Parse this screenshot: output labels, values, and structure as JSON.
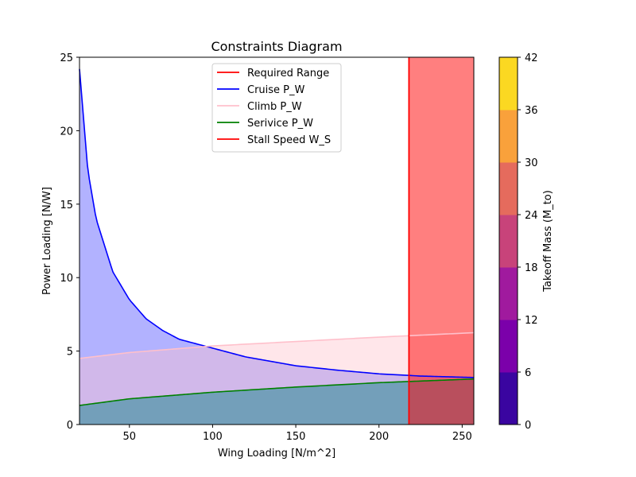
{
  "chart_data": {
    "type": "area",
    "title": "Constraints Diagram",
    "xlabel": "Wing Loading [N/m^2]",
    "ylabel": "Power Loading [N/W]",
    "xlim": [
      20,
      257
    ],
    "ylim": [
      0,
      25
    ],
    "xticks": [
      50,
      100,
      150,
      200,
      250
    ],
    "yticks": [
      0,
      5,
      10,
      15,
      20,
      25
    ],
    "legend_position": "upper center",
    "series": [
      {
        "name": "Cruise P_W",
        "color": "#0000ff",
        "fill_color": "#b3b3ff",
        "x": [
          20,
          25,
          30,
          40,
          50,
          60,
          70,
          80,
          100,
          120,
          150,
          175,
          200,
          225,
          257
        ],
        "y": [
          24.2,
          17.3,
          14.0,
          10.4,
          8.5,
          7.2,
          6.4,
          5.8,
          5.2,
          4.6,
          4.0,
          3.7,
          3.45,
          3.3,
          3.2
        ]
      },
      {
        "name": "Climb P_W",
        "color": "#ffc0cb",
        "fill_color": "#ffe6ea",
        "x": [
          20,
          50,
          100,
          150,
          200,
          257
        ],
        "y": [
          4.5,
          4.9,
          5.35,
          5.65,
          5.95,
          6.25
        ]
      },
      {
        "name": "Serivice P_W",
        "color": "#008000",
        "fill_color": "#8ca8a8",
        "x": [
          20,
          50,
          100,
          150,
          200,
          257
        ],
        "y": [
          1.3,
          1.75,
          2.2,
          2.55,
          2.85,
          3.1
        ]
      }
    ],
    "vertical_lines": [
      {
        "name": "Required Range",
        "x": 218,
        "color": "#ff0000"
      },
      {
        "name": "Stall Speed W_S",
        "x": 218,
        "color": "#ff0000",
        "fill_right": true,
        "fill_color": "#ff8080"
      }
    ],
    "legend": [
      {
        "label": "Required Range",
        "color": "#ff0000"
      },
      {
        "label": "Cruise P_W",
        "color": "#0000ff"
      },
      {
        "label": "Climb P_W",
        "color": "#ffc0cb"
      },
      {
        "label": "Serivice P_W",
        "color": "#008000"
      },
      {
        "label": "Stall Speed W_S",
        "color": "#ff0000"
      }
    ],
    "colorbar": {
      "label": "Takeoff Mass (M_to)",
      "ticks": [
        0,
        6,
        12,
        18,
        24,
        30,
        36,
        42
      ],
      "colors": [
        "#3a05a0",
        "#7b00aa",
        "#a01a9e",
        "#c8437a",
        "#e56b5d",
        "#f9a13b",
        "#fbd822"
      ]
    }
  }
}
